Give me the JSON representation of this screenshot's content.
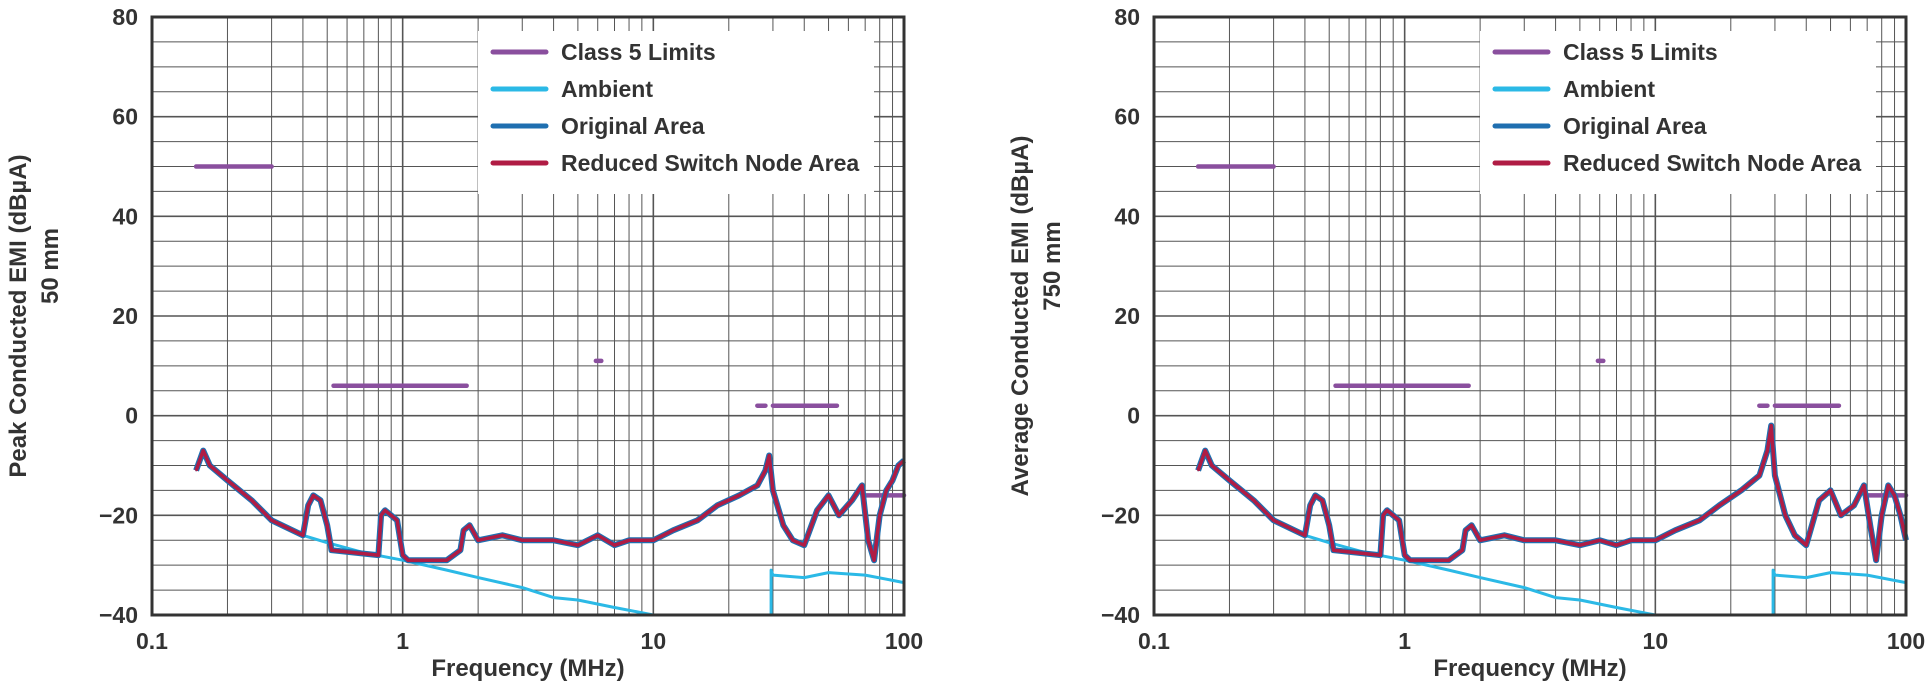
{
  "colors": {
    "limits": "#8a4f9e",
    "ambient": "#2bb9e6",
    "original": "#1f6fb0",
    "reduced": "#b01c44",
    "grid": "#555555",
    "frame": "#333333"
  },
  "chart_data": [
    {
      "type": "line",
      "x_scale": "log",
      "xlim": [
        0.1,
        100
      ],
      "ylim": [
        -40,
        80
      ],
      "xlabel": "Frequency (MHz)",
      "ylabel": "Peak Conducted EMI (dBµA)",
      "ylabel2": "50 mm",
      "x_ticks": [
        "0.1",
        "1",
        "10",
        "100"
      ],
      "y_ticks": [
        "80",
        "60",
        "40",
        "20",
        "0",
        "−20",
        "−40"
      ],
      "legend_position": "top-right",
      "legend": [
        "Class 5 Limits",
        "Ambient",
        "Original Area",
        "Reduced Switch Node Area"
      ],
      "series": [
        {
          "name": "Class 5 Limits",
          "segments": [
            [
              [
                0.15,
                50
              ],
              [
                0.3,
                50
              ]
            ],
            [
              [
                0.53,
                6
              ],
              [
                1.8,
                6
              ]
            ],
            [
              [
                5.9,
                11
              ],
              [
                6.2,
                11
              ]
            ],
            [
              [
                26,
                2
              ],
              [
                28,
                2
              ]
            ],
            [
              [
                30,
                2
              ],
              [
                54,
                2
              ]
            ],
            [
              [
                70,
                -16
              ],
              [
                100,
                -16
              ]
            ]
          ]
        },
        {
          "name": "Ambient",
          "x": [
            0.15,
            0.16,
            0.17,
            0.2,
            0.25,
            0.3,
            0.4,
            0.5,
            0.7,
            1,
            1.5,
            2,
            3,
            4,
            5,
            7,
            10,
            15,
            20,
            29.5,
            29.5,
            30,
            40,
            50,
            70,
            100
          ],
          "y": [
            -11,
            -7,
            -10,
            -13,
            -17,
            -21,
            -24,
            -25.5,
            -27.5,
            -29,
            -31,
            -32.5,
            -34.5,
            -36.5,
            -37,
            -38.5,
            -40,
            -40,
            -40,
            -40,
            -31,
            -32,
            -32.5,
            -31.5,
            -32,
            -33.5
          ]
        },
        {
          "name": "Original Area",
          "x": [
            0.15,
            0.16,
            0.17,
            0.2,
            0.25,
            0.3,
            0.4,
            0.42,
            0.44,
            0.47,
            0.5,
            0.52,
            0.8,
            0.82,
            0.85,
            0.95,
            1,
            1.05,
            1.2,
            1.5,
            1.7,
            1.75,
            1.85,
            2,
            2.5,
            3,
            4,
            5,
            6,
            7,
            8,
            10,
            12,
            15,
            18,
            22,
            26,
            28,
            29,
            30,
            33,
            36,
            40,
            45,
            50,
            55,
            62,
            68,
            72,
            76,
            80,
            85,
            90,
            95,
            100
          ],
          "y": [
            -11,
            -7,
            -10,
            -13,
            -17,
            -21,
            -24,
            -18,
            -16,
            -17,
            -22,
            -27,
            -28,
            -20,
            -19,
            -21,
            -28,
            -29,
            -29,
            -29,
            -27,
            -23,
            -22,
            -25,
            -24,
            -25,
            -25,
            -26,
            -24,
            -26,
            -25,
            -25,
            -23,
            -21,
            -18,
            -16,
            -14,
            -11,
            -8,
            -15,
            -22,
            -25,
            -26,
            -19,
            -16,
            -20,
            -17,
            -14,
            -25,
            -29,
            -20,
            -15,
            -13,
            -10,
            -9
          ]
        },
        {
          "name": "Reduced Switch Node Area",
          "x": [
            0.15,
            0.16,
            0.17,
            0.2,
            0.25,
            0.3,
            0.4,
            0.42,
            0.44,
            0.47,
            0.5,
            0.52,
            0.8,
            0.82,
            0.85,
            0.95,
            1,
            1.05,
            1.2,
            1.5,
            1.7,
            1.75,
            1.85,
            2,
            2.5,
            3,
            4,
            5,
            6,
            7,
            8,
            10,
            12,
            15,
            18,
            22,
            26,
            28,
            29,
            30,
            33,
            36,
            40,
            45,
            50,
            55,
            62,
            68,
            72,
            76,
            80,
            85,
            90,
            95,
            100
          ],
          "y": [
            -11,
            -7,
            -10,
            -13,
            -17,
            -21,
            -24,
            -18,
            -16,
            -17,
            -22,
            -27,
            -28,
            -20,
            -19,
            -21,
            -28,
            -29,
            -29,
            -29,
            -27,
            -23,
            -22,
            -25,
            -24,
            -25,
            -25,
            -26,
            -24,
            -26,
            -25,
            -25,
            -23,
            -21,
            -18,
            -16,
            -14,
            -11,
            -8,
            -15,
            -22,
            -25,
            -26,
            -19,
            -16,
            -20,
            -17,
            -14,
            -25,
            -29,
            -20,
            -15,
            -13,
            -10,
            -9
          ]
        }
      ]
    },
    {
      "type": "line",
      "x_scale": "log",
      "xlim": [
        0.1,
        100
      ],
      "ylim": [
        -40,
        80
      ],
      "xlabel": "Frequency (MHz)",
      "ylabel": "Average Conducted EMI (dBµA)",
      "ylabel2": "750 mm",
      "x_ticks": [
        "0.1",
        "1",
        "10",
        "100"
      ],
      "y_ticks": [
        "80",
        "60",
        "40",
        "20",
        "0",
        "−20",
        "−40"
      ],
      "legend_position": "top-right",
      "legend": [
        "Class 5 Limits",
        "Ambient",
        "Original Area",
        "Reduced Switch Node Area"
      ],
      "series": [
        {
          "name": "Class 5 Limits",
          "segments": [
            [
              [
                0.15,
                50
              ],
              [
                0.3,
                50
              ]
            ],
            [
              [
                0.53,
                6
              ],
              [
                1.8,
                6
              ]
            ],
            [
              [
                5.9,
                11
              ],
              [
                6.2,
                11
              ]
            ],
            [
              [
                26,
                2
              ],
              [
                28,
                2
              ]
            ],
            [
              [
                30,
                2
              ],
              [
                54,
                2
              ]
            ],
            [
              [
                70,
                -16
              ],
              [
                100,
                -16
              ]
            ]
          ]
        },
        {
          "name": "Ambient",
          "x": [
            0.15,
            0.16,
            0.17,
            0.2,
            0.25,
            0.3,
            0.4,
            0.5,
            0.7,
            1,
            1.5,
            2,
            3,
            4,
            5,
            7,
            10,
            15,
            20,
            29.5,
            29.5,
            30,
            40,
            50,
            70,
            100
          ],
          "y": [
            -11,
            -7,
            -10,
            -13,
            -17,
            -21,
            -24,
            -25.5,
            -27.5,
            -29,
            -31,
            -32.5,
            -34.5,
            -36.5,
            -37,
            -38.5,
            -40,
            -40,
            -40,
            -40,
            -31,
            -32,
            -32.5,
            -31.5,
            -32,
            -33.5
          ]
        },
        {
          "name": "Original Area",
          "x": [
            0.15,
            0.16,
            0.17,
            0.2,
            0.25,
            0.3,
            0.4,
            0.42,
            0.44,
            0.47,
            0.5,
            0.52,
            0.8,
            0.82,
            0.85,
            0.95,
            1,
            1.05,
            1.2,
            1.5,
            1.7,
            1.75,
            1.85,
            2,
            2.5,
            3,
            4,
            5,
            6,
            7,
            8,
            10,
            12,
            15,
            18,
            22,
            26,
            28,
            29,
            30,
            33,
            36,
            40,
            45,
            50,
            55,
            62,
            68,
            72,
            76,
            80,
            85,
            90,
            95,
            100
          ],
          "y": [
            -11,
            -7,
            -10,
            -13,
            -17,
            -21,
            -24,
            -18,
            -16,
            -17,
            -22,
            -27,
            -28,
            -20,
            -19,
            -21,
            -28,
            -29,
            -29,
            -29,
            -27,
            -23,
            -22,
            -25,
            -24,
            -25,
            -25,
            -26,
            -25,
            -26,
            -25,
            -25,
            -23,
            -21,
            -18,
            -15,
            -12,
            -7,
            -2,
            -12,
            -20,
            -24,
            -26,
            -17,
            -15,
            -20,
            -18,
            -14,
            -22,
            -29,
            -20,
            -14,
            -16,
            -20,
            -25
          ]
        },
        {
          "name": "Reduced Switch Node Area",
          "x": [
            0.15,
            0.16,
            0.17,
            0.2,
            0.25,
            0.3,
            0.4,
            0.42,
            0.44,
            0.47,
            0.5,
            0.52,
            0.8,
            0.82,
            0.85,
            0.95,
            1,
            1.05,
            1.2,
            1.5,
            1.7,
            1.75,
            1.85,
            2,
            2.5,
            3,
            4,
            5,
            6,
            7,
            8,
            10,
            12,
            15,
            18,
            22,
            26,
            28,
            29,
            30,
            33,
            36,
            40,
            45,
            50,
            55,
            62,
            68,
            72,
            76,
            80,
            85,
            90,
            95,
            100
          ],
          "y": [
            -11,
            -7,
            -10,
            -13,
            -17,
            -21,
            -24,
            -18,
            -16,
            -17,
            -22,
            -27,
            -28,
            -20,
            -19,
            -21,
            -28,
            -29,
            -29,
            -29,
            -27,
            -23,
            -22,
            -25,
            -24,
            -25,
            -25,
            -26,
            -25,
            -26,
            -25,
            -25,
            -23,
            -21,
            -18,
            -15,
            -12,
            -7,
            -2,
            -12,
            -20,
            -24,
            -26,
            -17,
            -15,
            -20,
            -18,
            -14,
            -22,
            -29,
            -20,
            -14,
            -16,
            -20,
            -25
          ]
        }
      ]
    }
  ]
}
